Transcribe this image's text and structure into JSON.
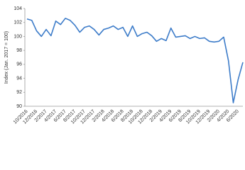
{
  "chart_data": {
    "type": "line",
    "y_label": "Index (Jan. 2017 = 100)",
    "categories": [
      "10/2016",
      null,
      "12/2016",
      null,
      "2/2017",
      null,
      "4/2017",
      null,
      "6/2017",
      null,
      "8/2017",
      null,
      "10/2017",
      null,
      "12/2017",
      null,
      "2/2018",
      null,
      "4/2018",
      null,
      "6/2018",
      null,
      "8/2018",
      null,
      "10/2018",
      null,
      "12/2018",
      null,
      "2/2019",
      null,
      "4/2019",
      null,
      "6/2019",
      null,
      "8/2019",
      null,
      "10/2019",
      null,
      "12/2019",
      null,
      "2/2020",
      null,
      "4/2020",
      null,
      "6/2020",
      null
    ],
    "values": [
      102.5,
      102.3,
      100.8,
      100,
      101,
      100.1,
      102.2,
      101.7,
      102.6,
      102.3,
      101.6,
      100.6,
      101.3,
      101.5,
      101,
      100.2,
      101,
      101.2,
      101.5,
      101,
      101.3,
      100,
      101.5,
      100,
      100.4,
      100.6,
      100.1,
      99.3,
      99.7,
      99.4,
      101.2,
      99.9,
      100,
      100.1,
      99.7,
      100,
      99.7,
      99.8,
      99.3,
      99.2,
      99.3,
      99.9,
      96.5,
      90.5,
      93.8,
      96.3
    ],
    "color": "#3d7cc9",
    "ylim": [
      90,
      104
    ],
    "yticks": [
      90,
      92,
      94,
      96,
      98,
      100,
      102,
      104
    ],
    "grid": false
  }
}
